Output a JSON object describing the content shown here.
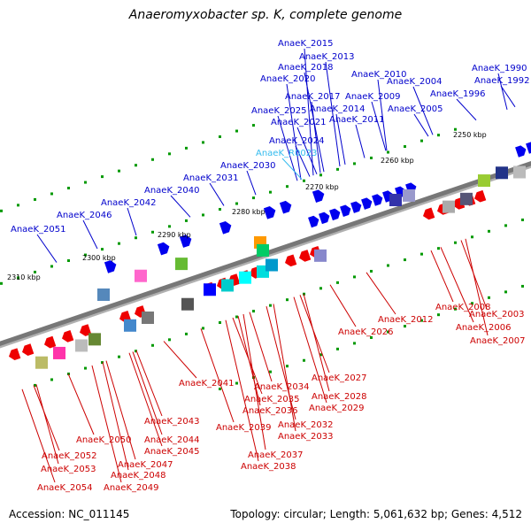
{
  "title": "Anaeromyxobacter sp. K, complete genome",
  "accession_text": "Accession: NC_011145",
  "summary_text": "Topology: circular; Length: 5,061,632 bp; Genes: 4,512",
  "colors": {
    "backbone": "#777777",
    "forward_gene": "#0000ee",
    "reverse_gene": "#ee0000",
    "highlight_label": "#33bbee",
    "tick": "#009900",
    "label_blue": "#0000cc",
    "label_red": "#cc0000"
  },
  "scale_ticks": [
    "2250 kbp",
    "2260 kbp",
    "2270 kbp",
    "2280 kbp",
    "2290 kbp",
    "2300 kbp",
    "2310 kbp"
  ],
  "top_labels": [
    "AnaeK_2015",
    "AnaeK_2013",
    "AnaeK_2018",
    "AnaeK_2010",
    "AnaeK_2020",
    "AnaeK_2004",
    "AnaeK_1990",
    "AnaeK_1992",
    "AnaeK_1996",
    "AnaeK_2017",
    "AnaeK_2009",
    "AnaeK_2025",
    "AnaeK_2014",
    "AnaeK_2005",
    "AnaeK_2021",
    "AnaeK_2011",
    "AnaeK_2024",
    "AnaeK_R0023",
    "AnaeK_2030",
    "AnaeK_2031",
    "AnaeK_2040",
    "AnaeK_2042",
    "AnaeK_2046",
    "AnaeK_2051"
  ],
  "bottom_labels": [
    "AnaeK_2008",
    "AnaeK_2003",
    "AnaeK_2012",
    "AnaeK_2006",
    "AnaeK_2007",
    "AnaeK_2026",
    "AnaeK_2027",
    "AnaeK_2041",
    "AnaeK_2034",
    "AnaeK_2028",
    "AnaeK_2035",
    "AnaeK_2029",
    "AnaeK_2036",
    "AnaeK_2043",
    "AnaeK_2032",
    "AnaeK_2039",
    "AnaeK_2033",
    "AnaeK_2050",
    "AnaeK_2044",
    "AnaeK_2045",
    "AnaeK_2037",
    "AnaeK_2052",
    "AnaeK_2047",
    "AnaeK_2038",
    "AnaeK_2053",
    "AnaeK_2048",
    "AnaeK_2049",
    "AnaeK_2054"
  ]
}
